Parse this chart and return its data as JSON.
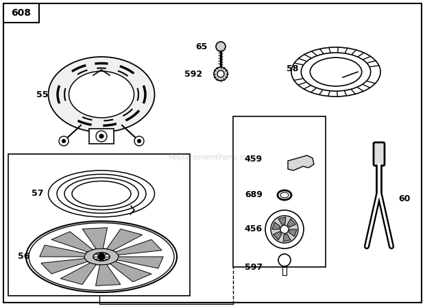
{
  "title": "608",
  "background_color": "#ffffff",
  "watermark": "ReplacementParts.com",
  "fig_w": 6.2,
  "fig_h": 4.47,
  "dpi": 100
}
